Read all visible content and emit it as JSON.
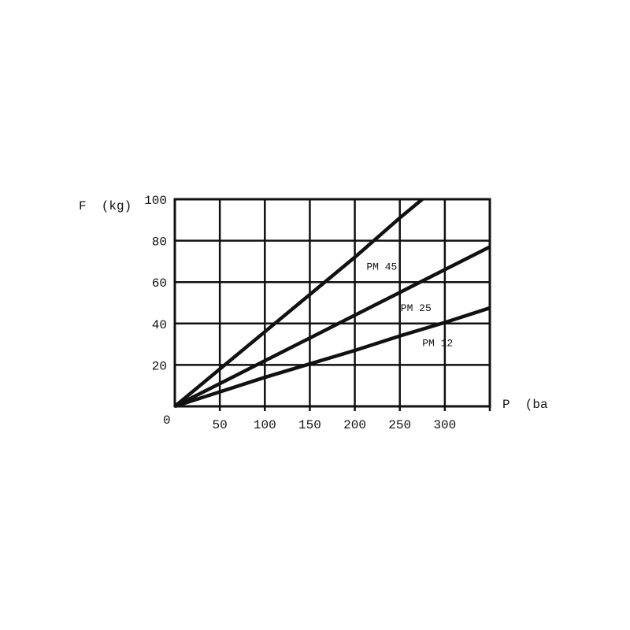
{
  "chart_data": {
    "type": "line",
    "title": "",
    "xlabel": "P  (ba",
    "ylabel": "F  (kg)",
    "origin_label": "0",
    "xlim": [
      0,
      350
    ],
    "ylim": [
      0,
      100
    ],
    "grid": true,
    "x_ticks": [
      50,
      100,
      150,
      200,
      250,
      300
    ],
    "x_tick_labels": [
      "50",
      "100",
      "150",
      "200",
      "250",
      "300"
    ],
    "y_ticks": [
      20,
      40,
      60,
      80,
      100
    ],
    "y_tick_labels": [
      "20",
      "40",
      "60",
      "80",
      "100"
    ],
    "grid_x": [
      50,
      100,
      150,
      200,
      250,
      300,
      350
    ],
    "grid_y": [
      20,
      40,
      60,
      80,
      100
    ],
    "line_color": "#111111",
    "series": [
      {
        "name": "PM 45",
        "x": [
          0,
          50,
          100,
          150,
          200,
          250,
          275
        ],
        "y": [
          0,
          18,
          36,
          54,
          72,
          91,
          100
        ],
        "label_at": [
          230,
          66
        ]
      },
      {
        "name": "PM 25",
        "x": [
          0,
          50,
          100,
          150,
          200,
          250,
          300,
          350
        ],
        "y": [
          0,
          11,
          22,
          33,
          44,
          55,
          66,
          77
        ],
        "label_at": [
          268,
          46
        ]
      },
      {
        "name": "PM 12",
        "x": [
          0,
          50,
          100,
          150,
          200,
          250,
          300,
          350
        ],
        "y": [
          0,
          7,
          14,
          20.5,
          27,
          34,
          40.5,
          47.5
        ],
        "label_at": [
          292,
          29
        ]
      }
    ]
  }
}
